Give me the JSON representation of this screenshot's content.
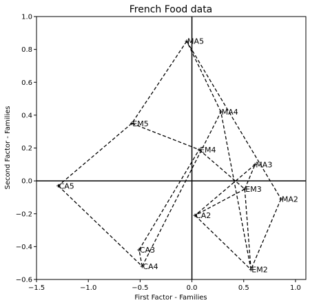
{
  "chart_data": {
    "type": "scatter",
    "title": "French Food data",
    "xlabel": "First Factor - Families",
    "ylabel": "Second Factor - Families",
    "xlim": [
      -1.5,
      1.1
    ],
    "ylim": [
      -0.6,
      1.0
    ],
    "xticks": [
      -1.5,
      -1.0,
      -0.5,
      0.0,
      0.5,
      1.0
    ],
    "xtick_labels": [
      "−1.5",
      "−1.0",
      "−0.5",
      "0.0",
      "0.5",
      "1.0"
    ],
    "yticks": [
      -0.6,
      -0.4,
      -0.2,
      0.0,
      0.2,
      0.4,
      0.6,
      0.8,
      1.0
    ],
    "ytick_labels": [
      "−0.6",
      "−0.4",
      "−0.2",
      "0.0",
      "0.2",
      "0.4",
      "0.6",
      "0.8",
      "1.0"
    ],
    "grid": false,
    "reference_lines": {
      "x": 0,
      "y": 0
    },
    "points": [
      {
        "label": "MA5",
        "x": -0.05,
        "y": 0.85
      },
      {
        "label": "MA4",
        "x": 0.28,
        "y": 0.42
      },
      {
        "label": "EM5",
        "x": -0.58,
        "y": 0.35
      },
      {
        "label": "EM4",
        "x": 0.07,
        "y": 0.19
      },
      {
        "label": "MA3",
        "x": 0.61,
        "y": 0.1
      },
      {
        "label": "CA5",
        "x": -1.29,
        "y": -0.03
      },
      {
        "label": "EM3",
        "x": 0.51,
        "y": -0.05
      },
      {
        "label": "MA2",
        "x": 0.86,
        "y": -0.11
      },
      {
        "label": "CA2",
        "x": 0.03,
        "y": -0.21
      },
      {
        "label": "CA3",
        "x": -0.51,
        "y": -0.42
      },
      {
        "label": "CA4",
        "x": -0.48,
        "y": -0.52
      },
      {
        "label": "EM2",
        "x": 0.57,
        "y": -0.54
      }
    ],
    "connections": [
      [
        "MA5",
        "MA2"
      ],
      [
        "MA2",
        "EM2"
      ],
      [
        "EM2",
        "MA4"
      ],
      [
        "MA4",
        "MA5"
      ],
      [
        "MA5",
        "EM5"
      ],
      [
        "EM5",
        "CA5"
      ],
      [
        "CA5",
        "CA4"
      ],
      [
        "CA4",
        "CA3"
      ],
      [
        "CA4",
        "MA4"
      ],
      [
        "EM5",
        "EM4"
      ],
      [
        "EM4",
        "EM3"
      ],
      [
        "EM3",
        "EM2"
      ],
      [
        "EM3",
        "CA2"
      ],
      [
        "CA2",
        "EM2"
      ],
      [
        "EM3",
        "MA3"
      ],
      [
        "MA3",
        "CA2"
      ],
      [
        "CA3",
        "EM4"
      ]
    ],
    "line_style": "dashed",
    "line_color": "#000000"
  }
}
